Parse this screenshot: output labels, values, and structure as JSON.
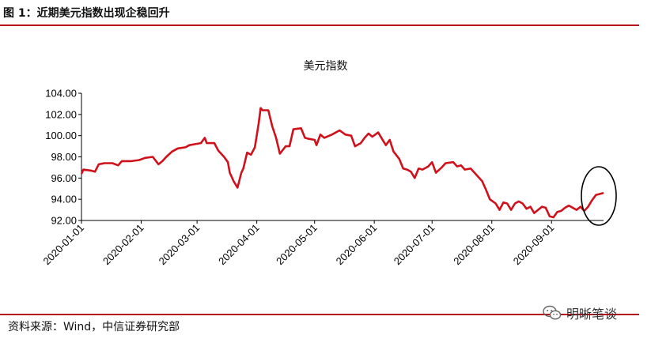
{
  "header": {
    "figure_title": "图 1：近期美元指数出现企稳回升"
  },
  "footer": {
    "source": "资料来源：Wind，中信证券研究部"
  },
  "watermark": {
    "label": "明晰笔谈",
    "icon": "wechat-icon"
  },
  "colors": {
    "accent": "#b8121b",
    "line": "#d0111b",
    "annotation": "#000000"
  },
  "chart_data": {
    "type": "line",
    "title": "美元指数",
    "xlabel": "",
    "ylabel": "",
    "ylim": [
      92,
      104
    ],
    "yticks": [
      "92.00",
      "94.00",
      "96.00",
      "98.00",
      "100.00",
      "102.00",
      "104.00"
    ],
    "xlim": [
      "2020-01-01",
      "2020-09-28"
    ],
    "xticks": [
      "2020-01-01",
      "2020-02-01",
      "2020-03-01",
      "2020-04-01",
      "2020-05-01",
      "2020-06-01",
      "2020-07-01",
      "2020-08-01",
      "2020-09-01"
    ],
    "grid": false,
    "legend": "none",
    "annotation": "ellipse around the latest rebound",
    "series": [
      {
        "points": [
          [
            "2020-01-01",
            96.4
          ],
          [
            "2020-01-02",
            96.8
          ],
          [
            "2020-01-06",
            96.7
          ],
          [
            "2020-01-08",
            96.6
          ],
          [
            "2020-01-10",
            97.3
          ],
          [
            "2020-01-13",
            97.4
          ],
          [
            "2020-01-17",
            97.4
          ],
          [
            "2020-01-20",
            97.2
          ],
          [
            "2020-01-22",
            97.6
          ],
          [
            "2020-01-27",
            97.6
          ],
          [
            "2020-01-31",
            97.7
          ],
          [
            "2020-02-03",
            97.9
          ],
          [
            "2020-02-07",
            98.0
          ],
          [
            "2020-02-10",
            97.3
          ],
          [
            "2020-02-12",
            97.6
          ],
          [
            "2020-02-14",
            98.0
          ],
          [
            "2020-02-17",
            98.5
          ],
          [
            "2020-02-20",
            98.8
          ],
          [
            "2020-02-24",
            98.9
          ],
          [
            "2020-02-26",
            99.1
          ],
          [
            "2020-02-29",
            99.2
          ],
          [
            "2020-03-03",
            99.3
          ],
          [
            "2020-03-05",
            99.8
          ],
          [
            "2020-03-06",
            99.3
          ],
          [
            "2020-03-10",
            99.3
          ],
          [
            "2020-03-12",
            98.6
          ],
          [
            "2020-03-15",
            98.0
          ],
          [
            "2020-03-17",
            97.5
          ],
          [
            "2020-03-18",
            96.5
          ],
          [
            "2020-03-20",
            95.7
          ],
          [
            "2020-03-22",
            95.1
          ],
          [
            "2020-03-24",
            96.5
          ],
          [
            "2020-03-25",
            96.9
          ],
          [
            "2020-03-27",
            98.4
          ],
          [
            "2020-03-29",
            98.2
          ],
          [
            "2020-03-31",
            98.9
          ],
          [
            "2020-04-02",
            101.2
          ],
          [
            "2020-04-03",
            102.6
          ],
          [
            "2020-04-04",
            102.4
          ],
          [
            "2020-04-07",
            102.4
          ],
          [
            "2020-04-09",
            100.9
          ],
          [
            "2020-04-11",
            99.8
          ],
          [
            "2020-04-13",
            98.3
          ],
          [
            "2020-04-16",
            99.0
          ],
          [
            "2020-04-18",
            99.0
          ],
          [
            "2020-04-20",
            100.6
          ],
          [
            "2020-04-24",
            100.7
          ],
          [
            "2020-04-26",
            99.8
          ],
          [
            "2020-04-28",
            99.7
          ],
          [
            "2020-05-01",
            99.6
          ],
          [
            "2020-05-02",
            99.1
          ],
          [
            "2020-05-04",
            100.1
          ],
          [
            "2020-05-06",
            99.8
          ],
          [
            "2020-05-10",
            100.1
          ],
          [
            "2020-05-14",
            100.5
          ],
          [
            "2020-05-17",
            100.1
          ],
          [
            "2020-05-20",
            100.0
          ],
          [
            "2020-05-22",
            99.0
          ],
          [
            "2020-05-25",
            99.3
          ],
          [
            "2020-05-27",
            99.8
          ],
          [
            "2020-05-29",
            100.2
          ],
          [
            "2020-05-31",
            99.9
          ],
          [
            "2020-06-03",
            100.3
          ],
          [
            "2020-06-05",
            99.7
          ],
          [
            "2020-06-07",
            99.1
          ],
          [
            "2020-06-09",
            99.6
          ],
          [
            "2020-06-11",
            98.5
          ],
          [
            "2020-06-14",
            97.8
          ],
          [
            "2020-06-16",
            96.9
          ],
          [
            "2020-06-18",
            96.8
          ],
          [
            "2020-06-20",
            96.6
          ],
          [
            "2020-06-22",
            96.0
          ],
          [
            "2020-06-24",
            96.9
          ],
          [
            "2020-06-26",
            96.8
          ],
          [
            "2020-06-29",
            97.1
          ],
          [
            "2020-07-01",
            97.5
          ],
          [
            "2020-07-03",
            96.5
          ],
          [
            "2020-07-06",
            97.0
          ],
          [
            "2020-07-08",
            97.4
          ],
          [
            "2020-07-12",
            97.5
          ],
          [
            "2020-07-14",
            97.1
          ],
          [
            "2020-07-16",
            97.2
          ],
          [
            "2020-07-18",
            96.8
          ],
          [
            "2020-07-21",
            96.9
          ],
          [
            "2020-07-24",
            96.3
          ],
          [
            "2020-07-27",
            95.7
          ],
          [
            "2020-07-29",
            94.9
          ],
          [
            "2020-07-31",
            94.0
          ],
          [
            "2020-08-03",
            93.6
          ],
          [
            "2020-08-05",
            93.0
          ],
          [
            "2020-08-07",
            93.7
          ],
          [
            "2020-08-09",
            93.6
          ],
          [
            "2020-08-11",
            93.0
          ],
          [
            "2020-08-13",
            93.6
          ],
          [
            "2020-08-15",
            93.8
          ],
          [
            "2020-08-17",
            93.6
          ],
          [
            "2020-08-19",
            93.1
          ],
          [
            "2020-08-21",
            93.3
          ],
          [
            "2020-08-23",
            92.7
          ],
          [
            "2020-08-25",
            93.0
          ],
          [
            "2020-08-27",
            93.3
          ],
          [
            "2020-08-29",
            93.2
          ],
          [
            "2020-08-31",
            92.4
          ],
          [
            "2020-09-02",
            92.3
          ],
          [
            "2020-09-04",
            92.8
          ],
          [
            "2020-09-06",
            92.9
          ],
          [
            "2020-09-08",
            93.2
          ],
          [
            "2020-09-10",
            93.4
          ],
          [
            "2020-09-12",
            93.2
          ],
          [
            "2020-09-14",
            93.0
          ],
          [
            "2020-09-16",
            93.3
          ],
          [
            "2020-09-18",
            92.9
          ],
          [
            "2020-09-20",
            93.3
          ],
          [
            "2020-09-22",
            93.9
          ],
          [
            "2020-09-24",
            94.4
          ],
          [
            "2020-09-26",
            94.5
          ],
          [
            "2020-09-28",
            94.6
          ]
        ]
      }
    ]
  }
}
